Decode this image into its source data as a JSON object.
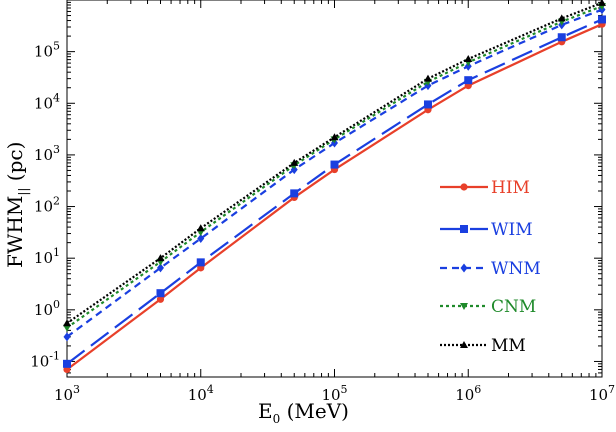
{
  "chart_data": {
    "type": "line",
    "xlabel": "E",
    "xlabel_sub": "0",
    "xlabel_unit": " (MeV)",
    "ylabel": "FWHM",
    "ylabel_sub": "||",
    "ylabel_unit": " (pc)",
    "x_scale": "log",
    "y_scale": "log",
    "xlim": [
      1000,
      10000000
    ],
    "ylim": [
      0.05,
      1000000
    ],
    "x_ticks": [
      {
        "value": 1000,
        "base": "10",
        "exp": "3"
      },
      {
        "value": 10000,
        "base": "10",
        "exp": "4"
      },
      {
        "value": 100000,
        "base": "10",
        "exp": "5"
      },
      {
        "value": 1000000,
        "base": "10",
        "exp": "6"
      },
      {
        "value": 10000000,
        "base": "10",
        "exp": "7"
      }
    ],
    "y_ticks": [
      {
        "value": 0.1,
        "base": "10",
        "exp": "-1"
      },
      {
        "value": 1,
        "base": "10",
        "exp": "0"
      },
      {
        "value": 10,
        "base": "10",
        "exp": "1"
      },
      {
        "value": 100,
        "base": "10",
        "exp": "2"
      },
      {
        "value": 1000,
        "base": "10",
        "exp": "3"
      },
      {
        "value": 10000,
        "base": "10",
        "exp": "4"
      },
      {
        "value": 100000,
        "base": "10",
        "exp": "5"
      }
    ],
    "grid": false,
    "legend_position": "right",
    "x": [
      1000,
      5000,
      10000,
      50000,
      100000,
      500000,
      1000000,
      5000000,
      10000000
    ],
    "series": [
      {
        "name": "HIM",
        "color": "#e8402a",
        "dash": "",
        "marker": "circle",
        "values": [
          0.07,
          1.6,
          6.5,
          150,
          520,
          7500,
          22000,
          155000,
          340000
        ]
      },
      {
        "name": "WIM",
        "color": "#1a3fe0",
        "dash": "22,8",
        "marker": "square",
        "values": [
          0.09,
          2.1,
          8.3,
          180,
          650,
          9500,
          28000,
          190000,
          420000
        ]
      },
      {
        "name": "WNM",
        "color": "#1a3fe0",
        "dash": "7,5",
        "marker": "diamond",
        "values": [
          0.3,
          6.5,
          24,
          520,
          1700,
          22000,
          52000,
          330000,
          650000
        ]
      },
      {
        "name": "CNM",
        "color": "#1f8a2a",
        "dash": "3,3",
        "marker": "triangle-down",
        "values": [
          0.45,
          8.5,
          32,
          630,
          2000,
          26000,
          62000,
          380000,
          760000
        ]
      },
      {
        "name": "MM",
        "color": "#000000",
        "dash": "2,2",
        "marker": "triangle-up",
        "values": [
          0.55,
          10,
          38,
          700,
          2200,
          30000,
          72000,
          440000,
          880000
        ]
      }
    ]
  }
}
